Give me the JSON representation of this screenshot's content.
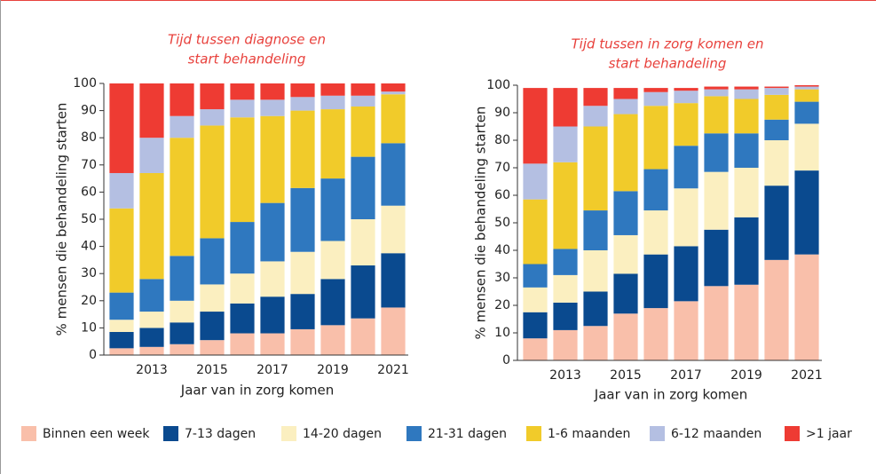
{
  "legend": [
    {
      "name": "Binnen een week",
      "color": "#f9bfaa"
    },
    {
      "name": "7-13 dagen",
      "color": "#0a4a8f"
    },
    {
      "name": "14-20 dagen",
      "color": "#fbefc0"
    },
    {
      "name": "21-31 dagen",
      "color": "#2f78bf"
    },
    {
      "name": "1-6 maanden",
      "color": "#f1cb2a"
    },
    {
      "name": "6-12 maanden",
      "color": "#b4bfe2"
    },
    {
      "name": ">1 jaar",
      "color": "#ee3b33"
    }
  ],
  "chart_data": [
    {
      "type": "stacked_bar",
      "title": [
        "Tijd tussen diagnose en",
        "start behandeling"
      ],
      "ylabel": "% mensen die behandeling starten",
      "xlabel": "Jaar van in zorg komen",
      "categories": [
        null,
        "2013",
        null,
        "2015",
        null,
        "2017",
        null,
        "2019",
        null,
        "2021"
      ],
      "ylim": [
        0,
        100
      ],
      "yticks": [
        0,
        10,
        20,
        30,
        40,
        50,
        60,
        70,
        80,
        90,
        100
      ],
      "series": [
        {
          "values": [
            2.5,
            3,
            4,
            5.5,
            8,
            8,
            9.5,
            11,
            13.5,
            17.5
          ]
        },
        {
          "values": [
            6,
            7,
            8,
            10.5,
            11,
            13.5,
            13,
            17,
            19.5,
            20
          ]
        },
        {
          "values": [
            4.5,
            6,
            8,
            10,
            11,
            13,
            15.5,
            14,
            17,
            17.5
          ]
        },
        {
          "values": [
            10,
            12,
            16.5,
            17,
            19,
            21.5,
            23.5,
            23,
            23,
            23
          ]
        },
        {
          "values": [
            31,
            39,
            43.5,
            41.5,
            38.5,
            32,
            28.5,
            25.5,
            18.5,
            18
          ]
        },
        {
          "values": [
            13,
            13,
            8,
            6,
            6.5,
            6,
            5,
            5,
            4,
            1
          ]
        },
        {
          "values": [
            33,
            20,
            12,
            9.5,
            6,
            6,
            5,
            4.5,
            4.5,
            3
          ]
        }
      ]
    },
    {
      "type": "stacked_bar",
      "title": [
        "Tijd tussen in zorg komen en",
        "start behandeling"
      ],
      "ylabel": "% mensen die behandeling starten",
      "xlabel": "Jaar van in zorg komen",
      "categories": [
        null,
        "2013",
        null,
        "2015",
        null,
        "2017",
        null,
        "2019",
        null,
        "2021"
      ],
      "ylim": [
        0,
        100
      ],
      "yticks": [
        0,
        10,
        20,
        30,
        40,
        50,
        60,
        70,
        80,
        90,
        100
      ],
      "series": [
        {
          "values": [
            8,
            11,
            12.5,
            17,
            19,
            21.5,
            27,
            27.5,
            36.5,
            38.5
          ]
        },
        {
          "values": [
            9.5,
            10,
            12.5,
            14.5,
            19.5,
            20,
            20.5,
            24.5,
            27,
            30.5
          ]
        },
        {
          "values": [
            9,
            10,
            15,
            14,
            16,
            21,
            21,
            18,
            16.5,
            17
          ]
        },
        {
          "values": [
            8.5,
            9.5,
            14.5,
            16,
            15,
            15.5,
            14,
            12.5,
            7.5,
            8
          ]
        },
        {
          "values": [
            23.5,
            31.5,
            30.5,
            28,
            23,
            15.5,
            13.5,
            12.5,
            9,
            4.5
          ]
        },
        {
          "values": [
            13,
            13,
            7.5,
            5.5,
            5,
            4.5,
            2.5,
            3.5,
            2.5,
            1
          ]
        },
        {
          "values": [
            27.5,
            14,
            6.5,
            4,
            1.5,
            1,
            1,
            1,
            0.5,
            0.5
          ]
        }
      ]
    }
  ]
}
